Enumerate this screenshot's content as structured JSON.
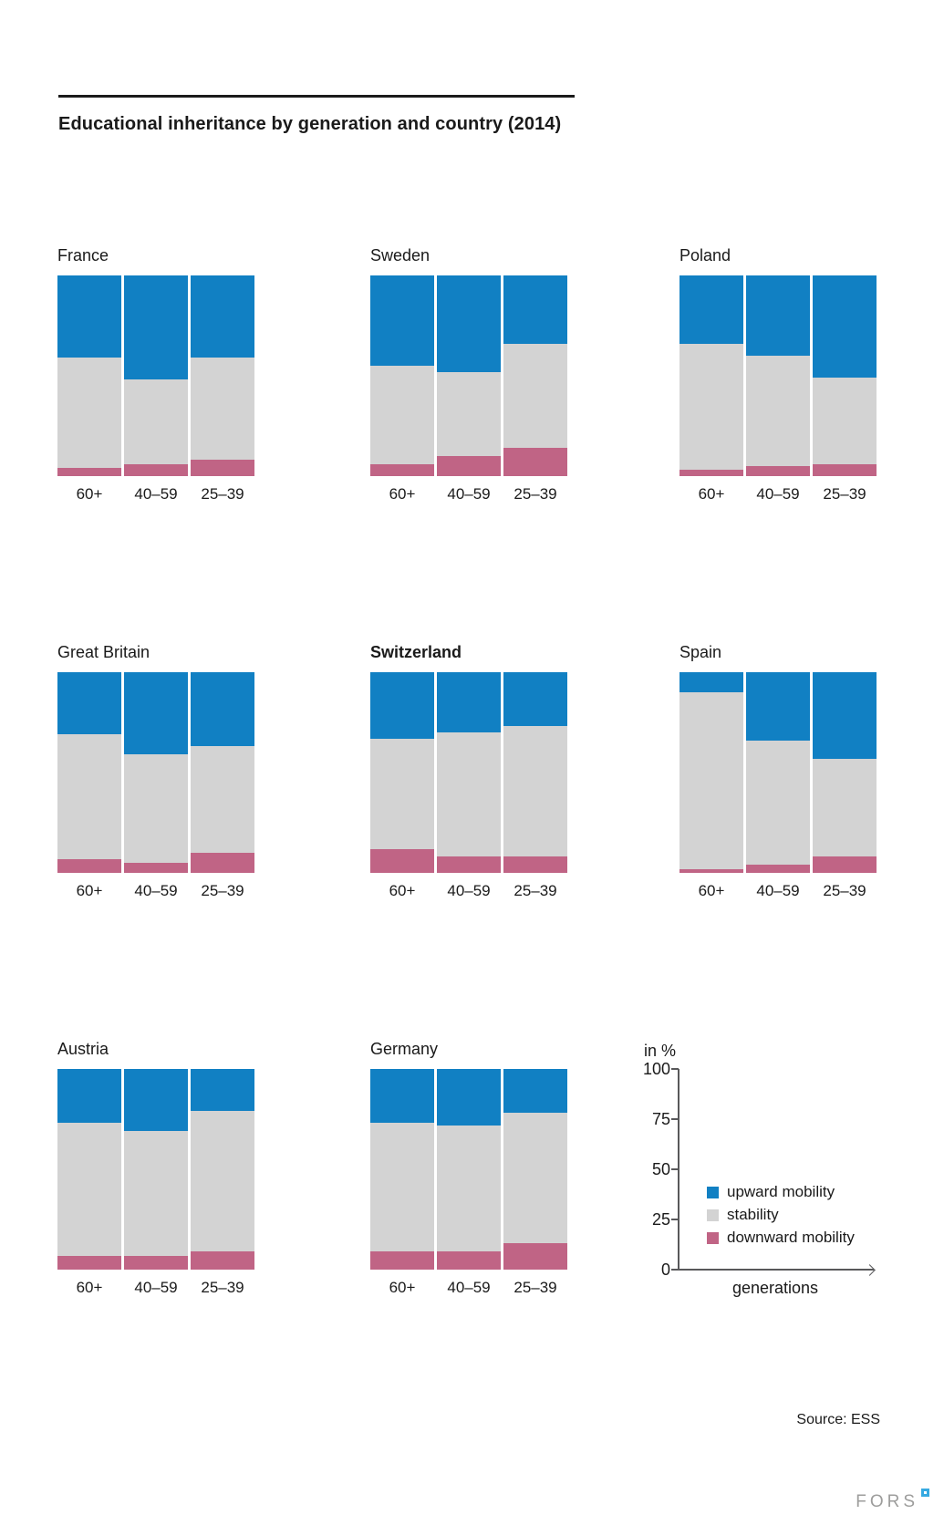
{
  "title": "Educational inheritance by generation and country (2014)",
  "source": "Source: ESS",
  "logo": {
    "text": "FORS"
  },
  "axis": {
    "unit_label": "in %",
    "xlabel": "generations",
    "ticks": [
      "100",
      "75",
      "50",
      "25",
      "0"
    ]
  },
  "legend": {
    "items": [
      {
        "label": "upward mobility",
        "color": "#1180C3"
      },
      {
        "label": "stability",
        "color": "#D3D3D3"
      },
      {
        "label": "downward mobility",
        "color": "#C06485"
      }
    ]
  },
  "chart_data": {
    "type": "bar",
    "subtype": "stacked-100-percent",
    "unit": "%",
    "ylim": [
      0,
      100
    ],
    "title": "Educational inheritance by generation and country (2014)",
    "ylabel": "in %",
    "xlabel": "generations",
    "categories": [
      "60+",
      "40–59",
      "25–39"
    ],
    "series_names": [
      "upward mobility",
      "stability",
      "downward mobility"
    ],
    "colors": {
      "upward": "#1180C3",
      "stability": "#D3D3D3",
      "downward": "#C06485"
    },
    "countries": [
      {
        "name": "France",
        "bold": false,
        "upward": [
          41,
          52,
          41
        ],
        "stability": [
          55,
          42,
          51
        ],
        "downward": [
          4,
          6,
          8
        ]
      },
      {
        "name": "Sweden",
        "bold": false,
        "upward": [
          45,
          48,
          34
        ],
        "stability": [
          49,
          42,
          52
        ],
        "downward": [
          6,
          10,
          14
        ]
      },
      {
        "name": "Poland",
        "bold": false,
        "upward": [
          34,
          40,
          51
        ],
        "stability": [
          63,
          55,
          43
        ],
        "downward": [
          3,
          5,
          6
        ]
      },
      {
        "name": "Great Britain",
        "bold": false,
        "upward": [
          31,
          41,
          37
        ],
        "stability": [
          62,
          54,
          53
        ],
        "downward": [
          7,
          5,
          10
        ]
      },
      {
        "name": "Switzerland",
        "bold": true,
        "upward": [
          33,
          30,
          27
        ],
        "stability": [
          55,
          62,
          65
        ],
        "downward": [
          12,
          8,
          8
        ]
      },
      {
        "name": "Spain",
        "bold": false,
        "upward": [
          10,
          34,
          43
        ],
        "stability": [
          88,
          62,
          49
        ],
        "downward": [
          2,
          4,
          8
        ]
      },
      {
        "name": "Austria",
        "bold": false,
        "upward": [
          27,
          31,
          21
        ],
        "stability": [
          66,
          62,
          70
        ],
        "downward": [
          7,
          7,
          9
        ]
      },
      {
        "name": "Germany",
        "bold": false,
        "upward": [
          27,
          28,
          22
        ],
        "stability": [
          64,
          63,
          65
        ],
        "downward": [
          9,
          9,
          13
        ]
      }
    ]
  }
}
